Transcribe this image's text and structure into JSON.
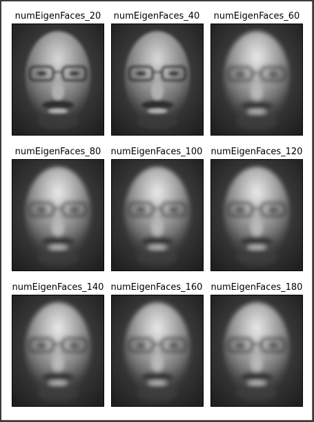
{
  "figure": {
    "panels": [
      {
        "title": "numEigenFaces_20",
        "image": "blurred grayscale reconstructed face, man with glasses and mustache"
      },
      {
        "title": "numEigenFaces_40",
        "image": "blurred grayscale reconstructed face, man with glasses and mustache"
      },
      {
        "title": "numEigenFaces_60",
        "image": "blurred grayscale reconstructed face, man with glasses and mustache"
      },
      {
        "title": "numEigenFaces_80",
        "image": "blurred grayscale reconstructed face, man with glasses and mustache"
      },
      {
        "title": "numEigenFaces_100",
        "image": "blurred grayscale reconstructed face, man with glasses and mustache"
      },
      {
        "title": "numEigenFaces_120",
        "image": "blurred grayscale reconstructed face, man with glasses and mustache"
      },
      {
        "title": "numEigenFaces_140",
        "image": "blurred grayscale reconstructed face, man with glasses and mustache"
      },
      {
        "title": "numEigenFaces_160",
        "image": "blurred grayscale reconstructed face, man with glasses and mustache"
      },
      {
        "title": "numEigenFaces_180",
        "image": "blurred grayscale reconstructed face, man with glasses and mustache"
      }
    ]
  }
}
